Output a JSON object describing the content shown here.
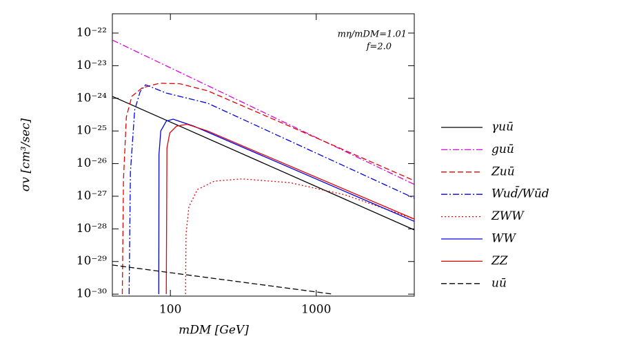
{
  "chart_data": {
    "type": "line",
    "xlabel": "mDM [GeV]",
    "ylabel": "σv [cm³/sec]",
    "annotations": [
      "mη/mDM=1.01",
      "f=2.0"
    ],
    "xscale": "log",
    "yscale": "log",
    "xlim": [
      40,
      4700
    ],
    "ylim": [
      8.7e-31,
      3.9e-22
    ],
    "xticks": [
      100,
      1000
    ],
    "yticks": [
      {
        "value": 1e-22,
        "label": "10⁻²²"
      },
      {
        "value": 1e-23,
        "label": "10⁻²³"
      },
      {
        "value": 1e-24,
        "label": "10⁻²⁴"
      },
      {
        "value": 1e-25,
        "label": "10⁻²⁵"
      },
      {
        "value": 1e-26,
        "label": "10⁻²⁶"
      },
      {
        "value": 1e-27,
        "label": "10⁻²⁷"
      },
      {
        "value": 1e-28,
        "label": "10⁻²⁸"
      },
      {
        "value": 1e-29,
        "label": "10⁻²⁹"
      },
      {
        "value": 1e-30,
        "label": "10⁻³⁰"
      }
    ],
    "series": [
      {
        "name": "γuū",
        "color": "#000000",
        "dash": "solid",
        "x": [
          40,
          4700
        ],
        "values": [
          1.15e-24,
          9.3e-29
        ]
      },
      {
        "name": "guū",
        "color": "#e000e0",
        "dash": "dashdot",
        "x": [
          40,
          4700
        ],
        "values": [
          6.1e-23,
          2.3e-27
        ]
      },
      {
        "name": "Zuū",
        "color": "#e00000",
        "dash": "dashed",
        "x": [
          46.8,
          47.7,
          49.9,
          54.4,
          64.1,
          84.1,
          116,
          180,
          532,
          4700
        ],
        "values": [
          1e-30,
          3.4e-27,
          2.7e-25,
          1.15e-24,
          2.1e-24,
          2.9e-24,
          2.8e-24,
          1.7e-24,
          2.1e-25,
          3e-27
        ]
      },
      {
        "name": "Wud̄/Wūd",
        "color": "#0000e0",
        "dash": "dashdot",
        "x": [
          52.1,
          53.2,
          56.9,
          62,
          67.6,
          93.7,
          180,
          4700
        ],
        "values": [
          1e-30,
          5.5e-27,
          4.4e-25,
          1.6e-24,
          2.6e-24,
          1.45e-24,
          7.1e-25,
          8.7e-28
        ]
      },
      {
        "name": "ZWW",
        "color": "#e00000",
        "dash": "dotted",
        "x": [
          127,
          128,
          134,
          153,
          200,
          310,
          662,
          1580,
          4700
        ],
        "values": [
          1e-30,
          6.9e-29,
          4.8e-28,
          1.6e-27,
          2.9e-27,
          3.4e-27,
          2.6e-27,
          1.1e-27,
          2e-28
        ]
      },
      {
        "name": "WW",
        "color": "#0000e0",
        "dash": "solid",
        "x": [
          83.2,
          83.5,
          85.9,
          93.7,
          104.4,
          145,
          4700
        ],
        "values": [
          1e-30,
          1.9e-26,
          1e-25,
          2e-25,
          2.3e-25,
          1.4e-25,
          1.7e-28
        ]
      },
      {
        "name": "ZZ",
        "color": "#e00000",
        "dash": "solid",
        "x": [
          93.7,
          94.7,
          99,
          110,
          130,
          180,
          4700
        ],
        "values": [
          1e-30,
          3e-26,
          8.7e-26,
          1.4e-25,
          1.6e-25,
          1e-25,
          2e-28
        ]
      },
      {
        "name": "uū",
        "color": "#000000",
        "dash": "dashed",
        "x": [
          40,
          1300
        ],
        "values": [
          7.8e-30,
          1e-30
        ]
      }
    ]
  }
}
